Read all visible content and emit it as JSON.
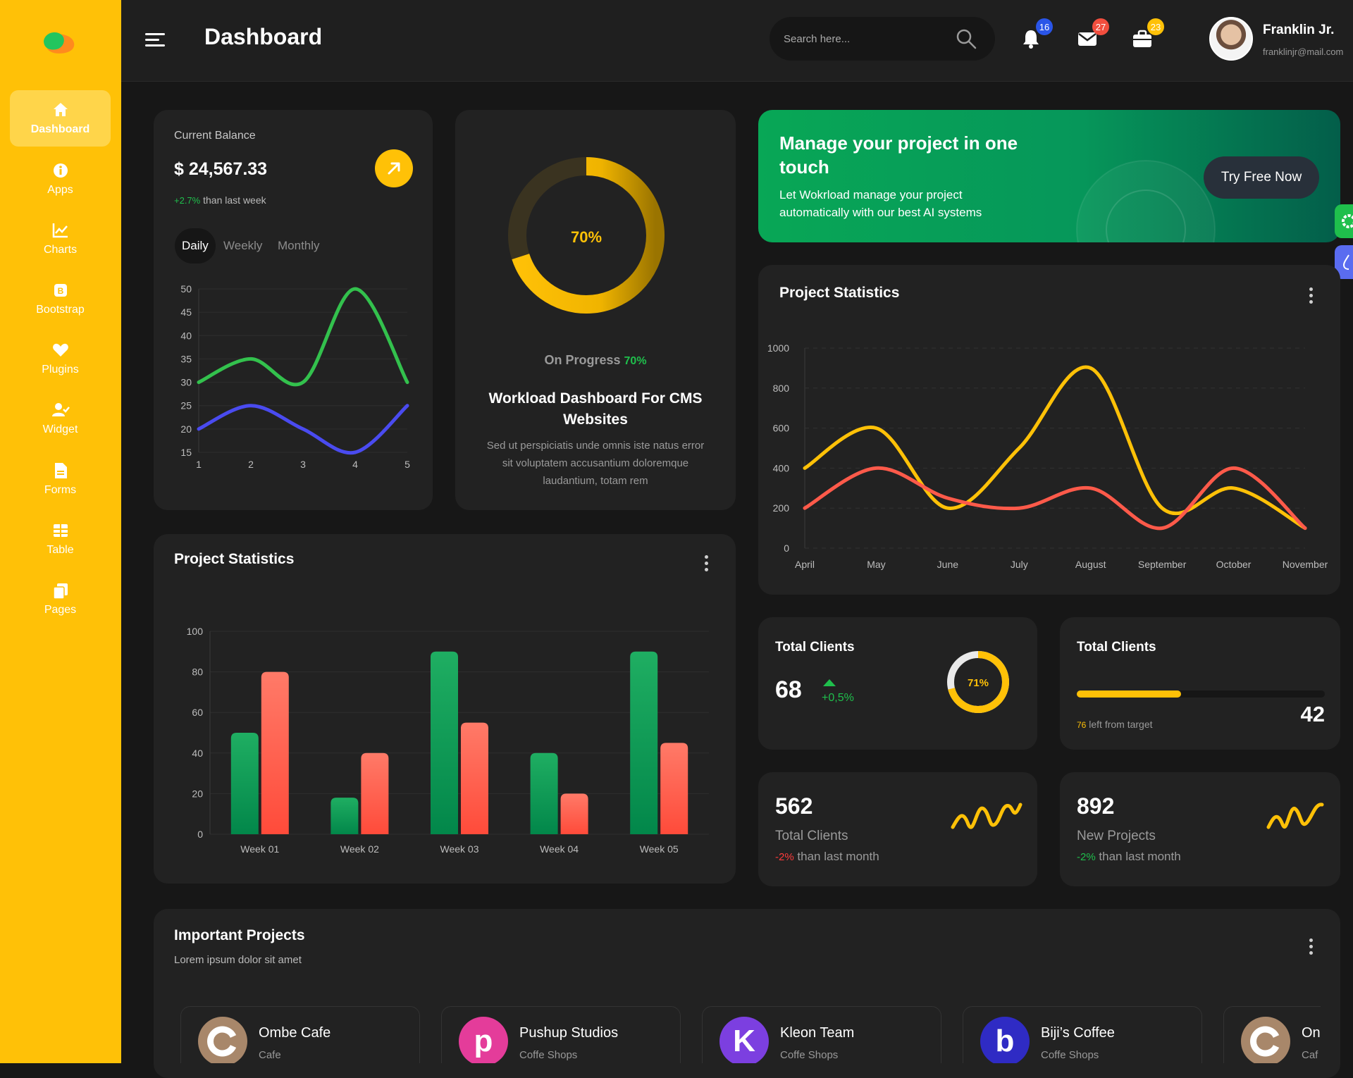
{
  "sidebar": {
    "items": [
      {
        "label": "Dashboard",
        "icon": "home-icon"
      },
      {
        "label": "Apps",
        "icon": "info-icon"
      },
      {
        "label": "Charts",
        "icon": "chart-icon"
      },
      {
        "label": "Bootstrap",
        "icon": "bootstrap-icon"
      },
      {
        "label": "Plugins",
        "icon": "heart-icon"
      },
      {
        "label": "Widget",
        "icon": "user-check-icon"
      },
      {
        "label": "Forms",
        "icon": "file-icon"
      },
      {
        "label": "Table",
        "icon": "table-icon"
      },
      {
        "label": "Pages",
        "icon": "copy-icon"
      }
    ]
  },
  "header": {
    "title": "Dashboard",
    "search_placeholder": "Search here...",
    "notifications_count": "16",
    "messages_count": "27",
    "tasks_count": "23",
    "user_name": "Franklin Jr.",
    "user_email": "franklinjr@mail.com"
  },
  "balance": {
    "label": "Current Balance",
    "amount": "$ 24,567.33",
    "change": "+2.7%",
    "change_text": "than last week",
    "tabs": [
      "Daily",
      "Weekly",
      "Monthly"
    ]
  },
  "progress_card": {
    "percent_label": "70%",
    "percent": 70,
    "status_text": "On Progress",
    "status_percent": "70%",
    "title_line1": "Workload Dashboard For CMS",
    "title_line2": "Websites",
    "desc_line1": "Sed ut perspiciatis unde omnis iste natus error",
    "desc_line2": "sit voluptatem accusantium doloremque",
    "desc_line3": "laudantium, totam rem"
  },
  "promo": {
    "title_line1": "Manage your project in one",
    "title_line2": "touch",
    "desc_line1": "Let Wokrload manage your project",
    "desc_line2": "automatically with our best AI systems",
    "button": "Try Free Now"
  },
  "project_stats_line": {
    "title": "Project Statistics"
  },
  "project_stats_bar": {
    "title": "Project Statistics"
  },
  "clients_ring": {
    "title": "Total Clients",
    "value": "68",
    "change": "+0,5%",
    "ring_label": "71%",
    "ring_percent": 71
  },
  "clients_target": {
    "title": "Total Clients",
    "left_value": "76",
    "left_text": "left from target",
    "value": "42",
    "progress": 0.42
  },
  "clients_month": {
    "value": "562",
    "label": "Total Clients",
    "change": "-2%",
    "change_text": "than last month"
  },
  "new_projects": {
    "value": "892",
    "label": "New Projects",
    "change": "-2%",
    "change_text": "than last month"
  },
  "important": {
    "title": "Important Projects",
    "subtitle": "Lorem ipsum dolor sit amet",
    "projects": [
      {
        "name": "Ombe Cafe",
        "type": "Cafe",
        "letter": "",
        "color": "#A8876A"
      },
      {
        "name": "Pushup Studios",
        "type": "Coffe Shops",
        "letter": "p",
        "color": "#E43C9A"
      },
      {
        "name": "Kleon Team",
        "type": "Coffe Shops",
        "letter": "K",
        "color": "#7C3FE0"
      },
      {
        "name": "Biji’s Coffee",
        "type": "Coffe Shops",
        "letter": "b",
        "color": "#2F2BC4"
      },
      {
        "name": "On",
        "type": "Caf",
        "letter": "",
        "color": "#A8876A"
      }
    ]
  },
  "colors": {
    "accent": "#FFC107",
    "green": "#1FBF4C",
    "red": "#FF5A4A",
    "blue": "#4A4BF0",
    "card": "#222222"
  },
  "chart_data": [
    {
      "type": "line",
      "x": [
        1,
        2,
        3,
        4,
        5
      ],
      "series": [
        {
          "values": [
            30,
            35,
            30,
            50,
            30
          ],
          "color": "#33C14D"
        },
        {
          "values": [
            20,
            25,
            20,
            15,
            25
          ],
          "color": "#4A4BF0"
        }
      ],
      "ylim": [
        15,
        50
      ],
      "yticks": [
        15,
        20,
        25,
        30,
        35,
        40,
        45,
        50
      ],
      "grid": true
    },
    {
      "type": "line",
      "categories": [
        "April",
        "May",
        "June",
        "July",
        "August",
        "September",
        "October",
        "November"
      ],
      "series": [
        {
          "values": [
            400,
            600,
            200,
            500,
            900,
            200,
            300,
            100
          ],
          "color": "#FFC107"
        },
        {
          "values": [
            200,
            400,
            250,
            200,
            300,
            100,
            400,
            100
          ],
          "color": "#FF5A4A"
        }
      ],
      "ylim": [
        0,
        1000
      ],
      "yticks": [
        0,
        200,
        400,
        600,
        800,
        1000
      ],
      "grid": true
    },
    {
      "type": "bar",
      "categories": [
        "Week 01",
        "Week 02",
        "Week 03",
        "Week 04",
        "Week 05"
      ],
      "series": [
        {
          "values": [
            50,
            18,
            90,
            40,
            90
          ],
          "color": "#0A9A55"
        },
        {
          "values": [
            80,
            40,
            55,
            20,
            45
          ],
          "color": "#FF5A4A"
        }
      ],
      "ylim": [
        0,
        100
      ],
      "yticks": [
        0,
        20,
        40,
        60,
        80,
        100
      ],
      "grid": true
    }
  ]
}
